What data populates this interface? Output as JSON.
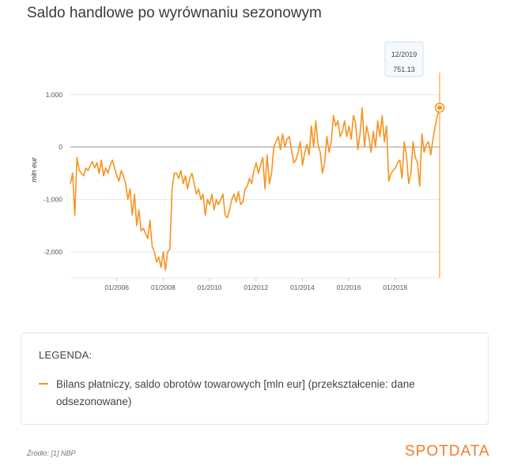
{
  "title": "Saldo handlowe po wyrównaniu sezonowym",
  "tooltip": {
    "date": "12/2019",
    "value": "751.13"
  },
  "legend": {
    "title": "LEGENDA:",
    "item": "Bilans płatniczy, saldo obrotów towarowych [mln eur] (przekształcenie: dane odsezonowane)"
  },
  "source": "Źródło: [1] NBP",
  "brand": "SPOTDATA",
  "colors": {
    "series": "#f7931e",
    "grid": "#e8e8e8",
    "zero_line": "#999999",
    "brand": "#f07b2a"
  },
  "chart_data": {
    "type": "line",
    "title": "Saldo handlowe po wyrównaniu sezonowym",
    "xlabel": "",
    "ylabel": "mln eur",
    "x_start": "01/2004",
    "x_end": "12/2019",
    "x_ticks": [
      "01/2006",
      "01/2008",
      "01/2010",
      "01/2012",
      "01/2014",
      "01/2016",
      "01/2018"
    ],
    "y_ticks": [
      1000,
      0,
      -1000,
      -2000
    ],
    "y_tick_labels": [
      "1,000",
      "0",
      "-1,000",
      "-2,000"
    ],
    "ylim": [
      -2500,
      1450
    ],
    "grid": true,
    "series": [
      {
        "name": "Bilans płatniczy, saldo obrotów towarowych [mln eur] (przekształcenie: dane odsezonowane)",
        "values": [
          -700,
          -500,
          -1300,
          -200,
          -450,
          -500,
          -550,
          -400,
          -450,
          -350,
          -280,
          -400,
          -300,
          -500,
          -250,
          -550,
          -400,
          -500,
          -350,
          -250,
          -400,
          -550,
          -650,
          -450,
          -550,
          -700,
          -1000,
          -800,
          -1300,
          -900,
          -1500,
          -1200,
          -1600,
          -1550,
          -1650,
          -1750,
          -1400,
          -1900,
          -2000,
          -2200,
          -2100,
          -2300,
          -2000,
          -2350,
          -2000,
          -1950,
          -800,
          -500,
          -500,
          -600,
          -450,
          -700,
          -550,
          -800,
          -600,
          -500,
          -700,
          -900,
          -800,
          -1000,
          -900,
          -1300,
          -1000,
          -1100,
          -900,
          -1200,
          -1000,
          -1100,
          -1000,
          -900,
          -1300,
          -1350,
          -1200,
          -1000,
          -900,
          -1050,
          -850,
          -1100,
          -1050,
          -800,
          -750,
          -600,
          -700,
          -450,
          -300,
          -500,
          -350,
          -200,
          -800,
          -150,
          -700,
          -500,
          0,
          100,
          200,
          -50,
          250,
          0,
          150,
          200,
          -50,
          -300,
          -250,
          -100,
          100,
          -350,
          -100,
          50,
          -150,
          400,
          0,
          500,
          50,
          -100,
          -500,
          -300,
          200,
          -100,
          100,
          600,
          400,
          500,
          200,
          300,
          500,
          200,
          400,
          150,
          600,
          450,
          -50,
          250,
          750,
          0,
          400,
          200,
          -100,
          300,
          0,
          500,
          200,
          600,
          100,
          400,
          -650,
          -500,
          -450,
          -400,
          -300,
          -250,
          -600,
          100,
          -150,
          -700,
          -500,
          100,
          -200,
          -300,
          -750,
          250,
          -100,
          50,
          100,
          -150,
          150,
          400,
          600,
          751.13
        ]
      }
    ]
  }
}
